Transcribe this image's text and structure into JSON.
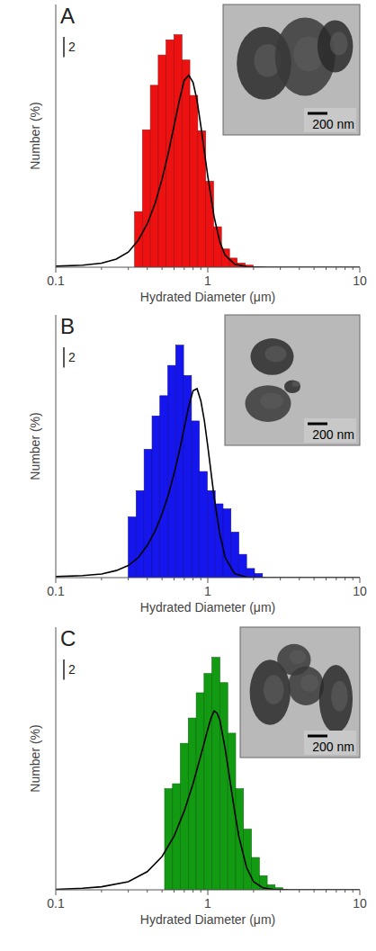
{
  "chart_data": [
    {
      "type": "histogram",
      "panel": "A",
      "xlabel": "Hydrated Diameter (μm)",
      "ylabel": "Number (%)",
      "log": "x",
      "xlim": [
        0.1,
        10
      ],
      "xticks": [
        0.1,
        1,
        10
      ],
      "ylim": [
        0,
        26
      ],
      "tick_labels": "x",
      "scale_bar": 2,
      "inset_label": "200 nm",
      "color": "#ee1111",
      "bins": [
        0.33,
        0.372,
        0.419,
        0.472,
        0.532,
        0.6,
        0.676,
        0.762,
        0.859,
        0.968,
        1.09,
        1.23,
        1.39,
        1.56,
        1.76,
        1.99
      ],
      "values": [
        5.5,
        13.6,
        18,
        21,
        22.5,
        23,
        20.5,
        17,
        13.5,
        8.5,
        4,
        1.8,
        0.9,
        0.4,
        0.2
      ],
      "fit": {
        "type": "line",
        "color": "#000000",
        "line_style": "solid",
        "x": [
          0.1,
          0.15,
          0.2,
          0.25,
          0.3,
          0.35,
          0.4,
          0.45,
          0.5,
          0.55,
          0.6,
          0.65,
          0.7,
          0.75,
          0.8,
          0.85,
          0.9,
          1.0,
          1.1,
          1.2,
          1.3,
          1.5,
          1.8,
          2.5,
          10
        ],
        "values": [
          0.1,
          0.2,
          0.4,
          0.8,
          1.5,
          2.7,
          4.3,
          6.3,
          8.7,
          11.3,
          14,
          16.5,
          18.5,
          19,
          18.3,
          16.5,
          14,
          9,
          5,
          2.5,
          1.2,
          0.3,
          0.05,
          0,
          0
        ]
      }
    },
    {
      "type": "histogram",
      "panel": "B",
      "xlabel": "Hydrated Diameter (μm)",
      "ylabel": "Number (%)",
      "log": "x",
      "xlim": [
        0.1,
        10
      ],
      "xticks": [
        0.1,
        1,
        10
      ],
      "ylim": [
        0,
        26
      ],
      "tick_labels": "x",
      "scale_bar": 2,
      "inset_label": "200 nm",
      "color": "#1515ee",
      "bins": [
        0.3,
        0.338,
        0.381,
        0.43,
        0.484,
        0.546,
        0.615,
        0.693,
        0.781,
        0.88,
        0.992,
        1.118,
        1.26,
        1.42,
        1.6,
        1.8,
        2.03,
        2.29
      ],
      "values": [
        6,
        8.6,
        12.7,
        16,
        18,
        21,
        23,
        20,
        15.5,
        10.5,
        8.6,
        7.3,
        6.8,
        4.5,
        2.3,
        0.9,
        0.4
      ],
      "fit": {
        "type": "line",
        "color": "#000000",
        "line_style": "solid",
        "x": [
          0.1,
          0.15,
          0.2,
          0.25,
          0.3,
          0.35,
          0.4,
          0.45,
          0.5,
          0.55,
          0.6,
          0.65,
          0.7,
          0.75,
          0.8,
          0.85,
          0.9,
          0.95,
          1.0,
          1.1,
          1.2,
          1.3,
          1.5,
          1.8,
          2.5,
          10
        ],
        "values": [
          0.1,
          0.2,
          0.35,
          0.7,
          1.2,
          2,
          3.2,
          4.6,
          6.3,
          8.2,
          10.3,
          12.5,
          14.8,
          17,
          18.5,
          18.7,
          17.5,
          15.5,
          13,
          8,
          4.3,
          2,
          0.4,
          0.05,
          0,
          0
        ]
      }
    },
    {
      "type": "histogram",
      "panel": "C",
      "xlabel": "Hydrated Diameter (μm)",
      "ylabel": "Number (%)",
      "log": "x",
      "xlim": [
        0.1,
        10
      ],
      "xticks": [
        0.1,
        1,
        10
      ],
      "ylim": [
        0,
        26
      ],
      "tick_labels": "x",
      "scale_bar": 2,
      "inset_label": "200 nm",
      "color": "#129a12",
      "bins": [
        0.52,
        0.586,
        0.66,
        0.744,
        0.839,
        0.945,
        1.065,
        1.2,
        1.353,
        1.525,
        1.718,
        1.937,
        2.183,
        2.46,
        2.77,
        3.12
      ],
      "values": [
        10,
        10.5,
        14.5,
        17,
        19.5,
        21.4,
        23,
        20.5,
        15.5,
        10,
        6,
        3.2,
        1.4,
        0.5,
        0.2
      ],
      "fit": {
        "type": "line",
        "color": "#000000",
        "line_style": "solid",
        "x": [
          0.1,
          0.15,
          0.2,
          0.3,
          0.4,
          0.5,
          0.6,
          0.7,
          0.8,
          0.9,
          1.0,
          1.05,
          1.1,
          1.15,
          1.2,
          1.3,
          1.4,
          1.5,
          1.6,
          1.8,
          2.0,
          2.3,
          2.7,
          3.5,
          10
        ],
        "values": [
          0.05,
          0.15,
          0.3,
          0.8,
          1.8,
          3.3,
          5.3,
          7.8,
          10.5,
          13.3,
          15.9,
          17,
          17.7,
          17.5,
          16.8,
          14,
          10.8,
          7.8,
          5.3,
          2.2,
          0.8,
          0.2,
          0.05,
          0,
          0
        ]
      }
    }
  ]
}
